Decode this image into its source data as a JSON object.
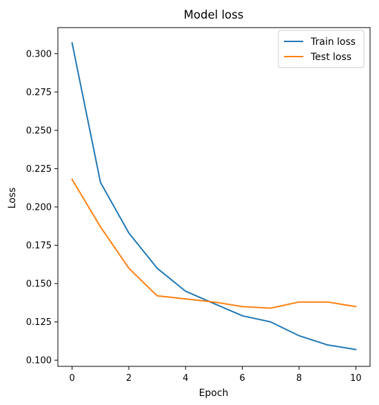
{
  "chart_data": {
    "type": "line",
    "title": "Model loss",
    "xlabel": "Epoch",
    "ylabel": "Loss",
    "x": [
      0,
      1,
      2,
      3,
      4,
      5,
      6,
      7,
      8,
      9,
      10
    ],
    "xticks": [
      "0",
      "2",
      "4",
      "6",
      "8",
      "10"
    ],
    "yticks": [
      "0.100",
      "0.125",
      "0.150",
      "0.175",
      "0.200",
      "0.225",
      "0.250",
      "0.275",
      "0.300"
    ],
    "xlim": [
      -0.5,
      10.5
    ],
    "ylim": [
      0.096,
      0.317
    ],
    "legend": "top-right",
    "grid": false,
    "series": [
      {
        "name": "Train loss",
        "color": "#1f77b4",
        "values": [
          0.307,
          0.216,
          0.183,
          0.16,
          0.145,
          0.137,
          0.129,
          0.125,
          0.116,
          0.11,
          0.107
        ]
      },
      {
        "name": "Test loss",
        "color": "#ff7f0e",
        "values": [
          0.218,
          0.187,
          0.16,
          0.142,
          0.14,
          0.138,
          0.135,
          0.134,
          0.138,
          0.138,
          0.135
        ]
      }
    ]
  }
}
